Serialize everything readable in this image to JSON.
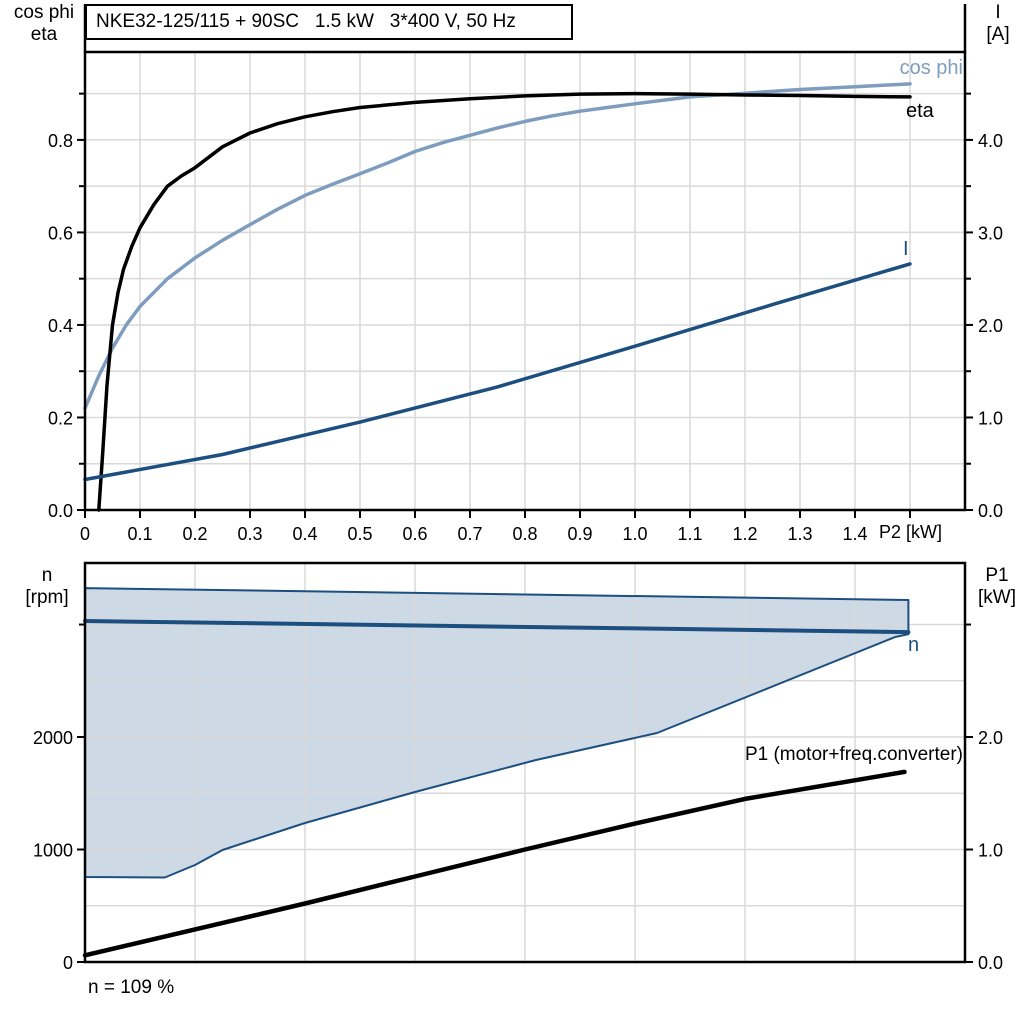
{
  "colors": {
    "axis": "#000000",
    "grid": "#d9d9d9",
    "dark_blue": "#1c4f7f",
    "light_blue": "#7e9dbe",
    "region_fill": "#cdd9e5",
    "background": "#ffffff"
  },
  "title_box": {
    "text": "NKE32-125/115 + 90SC   1.5 kW   3*400 V, 50 Hz"
  },
  "chart_data": [
    {
      "type": "line",
      "title": "NKE32-125/115 + 90SC   1.5 kW   3*400 V, 50 Hz",
      "xlabel": "P2 [kW]",
      "ylabel_left_lines": [
        "cos phi",
        "eta"
      ],
      "ylabel_right_lines": [
        "I",
        "[A]"
      ],
      "xlim": [
        0,
        1.6
      ],
      "ylim_left": [
        0,
        0.99
      ],
      "ylim_right": [
        0,
        4.95
      ],
      "grid": true,
      "x_tick_values": [
        0,
        0.1,
        0.2,
        0.3,
        0.4,
        0.5,
        0.6,
        0.7,
        0.8,
        0.9,
        1.0,
        1.1,
        1.2,
        1.3,
        1.4,
        1.5
      ],
      "x_tick_labels": [
        "0",
        "0.1",
        "0.2",
        "0.3",
        "0.4",
        "0.5",
        "0.6",
        "0.7",
        "0.8",
        "0.9",
        "1.0",
        "1.1",
        "1.2",
        "1.3",
        "1.4",
        ""
      ],
      "y_tick_values_left": [
        0,
        0.1,
        0.2,
        0.3,
        0.4,
        0.5,
        0.6,
        0.7,
        0.8,
        0.9
      ],
      "y_tick_labels_left": [
        "0.0",
        "",
        "0.2",
        "",
        "0.4",
        "",
        "0.6",
        "",
        "0.8",
        ""
      ],
      "y_tick_values_right": [
        0,
        0.5,
        1.0,
        1.5,
        2.0,
        2.5,
        3.0,
        3.5,
        4.0,
        4.5
      ],
      "y_tick_labels_right": [
        "0.0",
        "",
        "1.0",
        "",
        "2.0",
        "",
        "3.0",
        "",
        "4.0",
        ""
      ],
      "grid_x": [
        0.1,
        0.2,
        0.3,
        0.4,
        0.5,
        0.6,
        0.7,
        0.8,
        0.9,
        1.0,
        1.1,
        1.2,
        1.3,
        1.4,
        1.5
      ],
      "grid_y_left": [
        0.1,
        0.2,
        0.3,
        0.4,
        0.5,
        0.6,
        0.7,
        0.8,
        0.9
      ],
      "series": [
        {
          "name": "cos phi",
          "axis": "left",
          "color": "#7e9dbe",
          "width": 3.5,
          "points": [
            [
              0,
              0.22
            ],
            [
              0.025,
              0.29
            ],
            [
              0.05,
              0.35
            ],
            [
              0.075,
              0.4
            ],
            [
              0.1,
              0.44
            ],
            [
              0.15,
              0.5
            ],
            [
              0.2,
              0.545
            ],
            [
              0.25,
              0.583
            ],
            [
              0.3,
              0.617
            ],
            [
              0.35,
              0.65
            ],
            [
              0.4,
              0.68
            ],
            [
              0.45,
              0.704
            ],
            [
              0.5,
              0.727
            ],
            [
              0.55,
              0.75
            ],
            [
              0.6,
              0.775
            ],
            [
              0.65,
              0.794
            ],
            [
              0.7,
              0.81
            ],
            [
              0.75,
              0.826
            ],
            [
              0.8,
              0.84
            ],
            [
              0.85,
              0.852
            ],
            [
              0.9,
              0.862
            ],
            [
              0.95,
              0.87
            ],
            [
              1,
              0.878
            ],
            [
              1.1,
              0.893
            ],
            [
              1.2,
              0.901
            ],
            [
              1.3,
              0.909
            ],
            [
              1.4,
              0.915
            ],
            [
              1.5,
              0.921
            ]
          ]
        },
        {
          "name": "eta",
          "axis": "left",
          "color": "#000000",
          "width": 3.5,
          "points": [
            [
              0.025,
              0
            ],
            [
              0.032,
              0.12
            ],
            [
              0.04,
              0.27
            ],
            [
              0.05,
              0.4
            ],
            [
              0.06,
              0.47
            ],
            [
              0.07,
              0.52
            ],
            [
              0.085,
              0.57
            ],
            [
              0.1,
              0.61
            ],
            [
              0.125,
              0.66
            ],
            [
              0.15,
              0.7
            ],
            [
              0.175,
              0.722
            ],
            [
              0.2,
              0.74
            ],
            [
              0.25,
              0.785
            ],
            [
              0.3,
              0.815
            ],
            [
              0.35,
              0.835
            ],
            [
              0.4,
              0.85
            ],
            [
              0.45,
              0.861
            ],
            [
              0.5,
              0.87
            ],
            [
              0.6,
              0.881
            ],
            [
              0.7,
              0.889
            ],
            [
              0.8,
              0.895
            ],
            [
              0.9,
              0.899
            ],
            [
              1,
              0.9
            ],
            [
              1.1,
              0.899
            ],
            [
              1.2,
              0.897
            ],
            [
              1.3,
              0.896
            ],
            [
              1.4,
              0.894
            ],
            [
              1.5,
              0.893
            ]
          ]
        },
        {
          "name": "I",
          "axis": "right",
          "color": "#1c4f7f",
          "width": 3.5,
          "points": [
            [
              0,
              0.33
            ],
            [
              0.25,
              0.6
            ],
            [
              0.5,
              0.95
            ],
            [
              0.75,
              1.33
            ],
            [
              1,
              1.77
            ],
            [
              1.25,
              2.22
            ],
            [
              1.5,
              2.66
            ]
          ]
        }
      ]
    },
    {
      "type": "line",
      "title": "",
      "xlabel": "",
      "ylabel_left_lines": [
        "n",
        "[rpm]"
      ],
      "ylabel_right_lines": [
        "P1",
        "[kW]"
      ],
      "xlim": [
        0,
        1.6
      ],
      "ylim_left": [
        0,
        3547
      ],
      "ylim_right": [
        0,
        3.547
      ],
      "grid": true,
      "x_tick_values": [],
      "x_tick_labels": [],
      "y_tick_values_left": [
        0,
        1000,
        2000,
        3000
      ],
      "y_tick_labels_left": [
        "0",
        "1000",
        "2000",
        ""
      ],
      "y_tick_values_right": [
        0,
        1.0,
        2.0,
        3.0
      ],
      "y_tick_labels_right": [
        "0.0",
        "1.0",
        "2.0",
        ""
      ],
      "grid_x": [
        0.2,
        0.4,
        0.6,
        0.8,
        1.0,
        1.2,
        1.4
      ],
      "grid_y_left": [
        500,
        1000,
        1500,
        2000,
        2500,
        3000
      ],
      "region": {
        "name": "n speed operating range",
        "fill": "#cdd9e5",
        "edge": "#1c4f7f",
        "edge_width": 2,
        "points": [
          [
            0,
            3324
          ],
          [
            1.497,
            3218
          ],
          [
            1.497,
            2915
          ],
          [
            1.473,
            2889
          ],
          [
            1.04,
            2036
          ],
          [
            0.82,
            1796
          ],
          [
            0.6,
            1511
          ],
          [
            0.4,
            1236
          ],
          [
            0.25,
            996
          ],
          [
            0.2,
            862
          ],
          [
            0.145,
            751
          ],
          [
            0,
            756
          ]
        ]
      },
      "series": [
        {
          "name": "n",
          "axis": "left",
          "color": "#1c4f7f",
          "width": 4,
          "points": [
            [
              0,
              3031
            ],
            [
              1.497,
              2933
            ]
          ]
        },
        {
          "name": "P1 (motor+freq.converter)",
          "axis": "right",
          "color": "#000000",
          "width": 4.5,
          "points": [
            [
              0,
              0.06
            ],
            [
              0.2,
              0.29
            ],
            [
              0.4,
              0.52
            ],
            [
              0.6,
              0.76
            ],
            [
              0.8,
              1.0
            ],
            [
              1.0,
              1.23
            ],
            [
              1.2,
              1.45
            ],
            [
              1.49,
              1.69
            ]
          ]
        }
      ],
      "footnote": "n = 109 %"
    }
  ]
}
